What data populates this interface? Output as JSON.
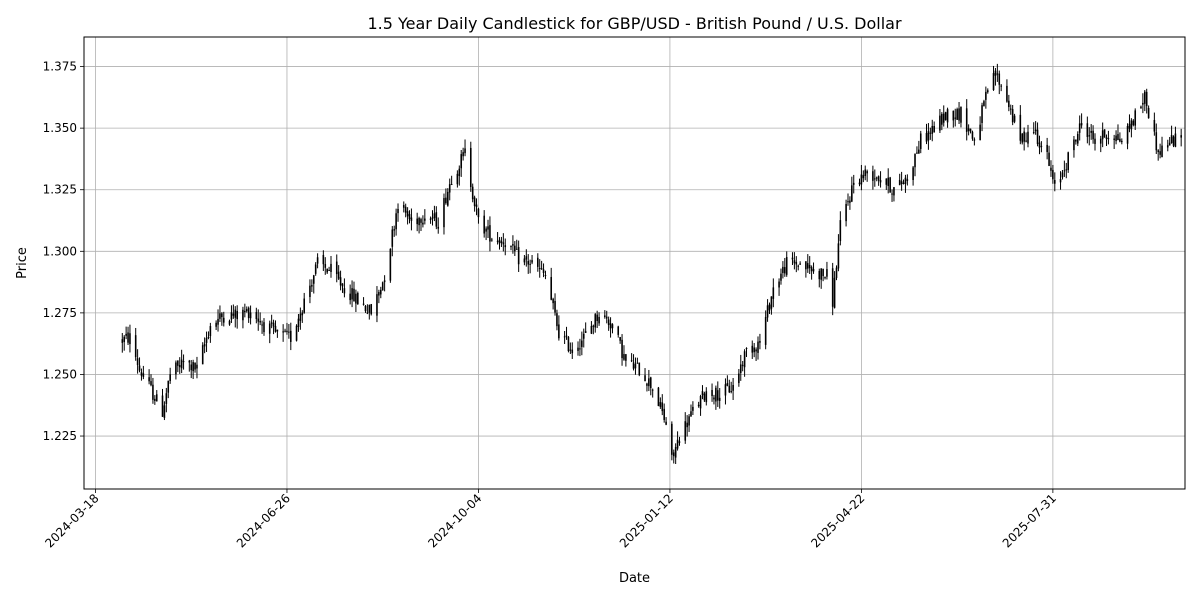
{
  "chart_data": {
    "type": "candlestick",
    "title": "1.5 Year Daily Candlestick for GBP/USD - British Pound / U.S. Dollar",
    "xlabel": "Date",
    "ylabel": "Price",
    "x_ticks": [
      "2024-03-18",
      "2024-06-26",
      "2024-10-04",
      "2025-01-12",
      "2025-04-22",
      "2025-07-31"
    ],
    "y_ticks": [
      "1.225",
      "1.250",
      "1.275",
      "1.300",
      "1.325",
      "1.350",
      "1.375"
    ],
    "xlim": [
      "2024-03-12",
      "2025-10-08"
    ],
    "ylim": [
      1.2035,
      1.387
    ],
    "grid": true,
    "colors": {
      "up": "#000000",
      "down": "#000000",
      "line": "#000000",
      "grid": "#b0b0b0"
    },
    "series_approx_close": [
      [
        "2024-04-01",
        1.264
      ],
      [
        "2024-04-05",
        1.265
      ],
      [
        "2024-04-10",
        1.252
      ],
      [
        "2024-04-15",
        1.245
      ],
      [
        "2024-04-22",
        1.235
      ],
      [
        "2024-04-26",
        1.25
      ],
      [
        "2024-05-03",
        1.255
      ],
      [
        "2024-05-10",
        1.252
      ],
      [
        "2024-05-17",
        1.27
      ],
      [
        "2024-05-24",
        1.274
      ],
      [
        "2024-05-31",
        1.274
      ],
      [
        "2024-06-07",
        1.276
      ],
      [
        "2024-06-14",
        1.27
      ],
      [
        "2024-06-21",
        1.266
      ],
      [
        "2024-06-28",
        1.265
      ],
      [
        "2024-07-05",
        1.28
      ],
      [
        "2024-07-12",
        1.295
      ],
      [
        "2024-07-19",
        1.292
      ],
      [
        "2024-07-26",
        1.285
      ],
      [
        "2024-08-02",
        1.28
      ],
      [
        "2024-08-09",
        1.275
      ],
      [
        "2024-08-16",
        1.29
      ],
      [
        "2024-08-23",
        1.32
      ],
      [
        "2024-08-30",
        1.312
      ],
      [
        "2024-09-06",
        1.315
      ],
      [
        "2024-09-13",
        1.312
      ],
      [
        "2024-09-20",
        1.33
      ],
      [
        "2024-09-27",
        1.34
      ],
      [
        "2024-10-04",
        1.312
      ],
      [
        "2024-10-11",
        1.306
      ],
      [
        "2024-10-18",
        1.304
      ],
      [
        "2024-10-25",
        1.297
      ],
      [
        "2024-11-01",
        1.295
      ],
      [
        "2024-11-08",
        1.29
      ],
      [
        "2024-11-15",
        1.267
      ],
      [
        "2024-11-22",
        1.26
      ],
      [
        "2024-11-29",
        1.266
      ],
      [
        "2024-12-06",
        1.275
      ],
      [
        "2024-12-13",
        1.27
      ],
      [
        "2024-12-20",
        1.255
      ],
      [
        "2024-12-27",
        1.252
      ],
      [
        "2025-01-03",
        1.245
      ],
      [
        "2025-01-10",
        1.23
      ],
      [
        "2025-01-13",
        1.215
      ],
      [
        "2025-01-17",
        1.225
      ],
      [
        "2025-01-24",
        1.235
      ],
      [
        "2025-01-31",
        1.243
      ],
      [
        "2025-02-07",
        1.242
      ],
      [
        "2025-02-14",
        1.245
      ],
      [
        "2025-02-21",
        1.26
      ],
      [
        "2025-02-28",
        1.263
      ],
      [
        "2025-03-07",
        1.285
      ],
      [
        "2025-03-14",
        1.295
      ],
      [
        "2025-03-21",
        1.295
      ],
      [
        "2025-03-28",
        1.292
      ],
      [
        "2025-04-04",
        1.29
      ],
      [
        "2025-04-07",
        1.28
      ],
      [
        "2025-04-11",
        1.31
      ],
      [
        "2025-04-18",
        1.328
      ],
      [
        "2025-04-25",
        1.332
      ],
      [
        "2025-05-02",
        1.33
      ],
      [
        "2025-05-09",
        1.325
      ],
      [
        "2025-05-16",
        1.33
      ],
      [
        "2025-05-23",
        1.345
      ],
      [
        "2025-05-30",
        1.35
      ],
      [
        "2025-06-06",
        1.356
      ],
      [
        "2025-06-13",
        1.356
      ],
      [
        "2025-06-20",
        1.345
      ],
      [
        "2025-06-27",
        1.365
      ],
      [
        "2025-07-01",
        1.372
      ],
      [
        "2025-07-07",
        1.362
      ],
      [
        "2025-07-14",
        1.345
      ],
      [
        "2025-07-21",
        1.35
      ],
      [
        "2025-07-28",
        1.338
      ],
      [
        "2025-08-01",
        1.325
      ],
      [
        "2025-08-08",
        1.338
      ],
      [
        "2025-08-15",
        1.352
      ],
      [
        "2025-08-22",
        1.345
      ],
      [
        "2025-08-29",
        1.348
      ],
      [
        "2025-09-05",
        1.345
      ],
      [
        "2025-09-12",
        1.355
      ],
      [
        "2025-09-17",
        1.363
      ],
      [
        "2025-09-24",
        1.34
      ],
      [
        "2025-10-01",
        1.345
      ],
      [
        "2025-10-06",
        1.345
      ]
    ]
  }
}
